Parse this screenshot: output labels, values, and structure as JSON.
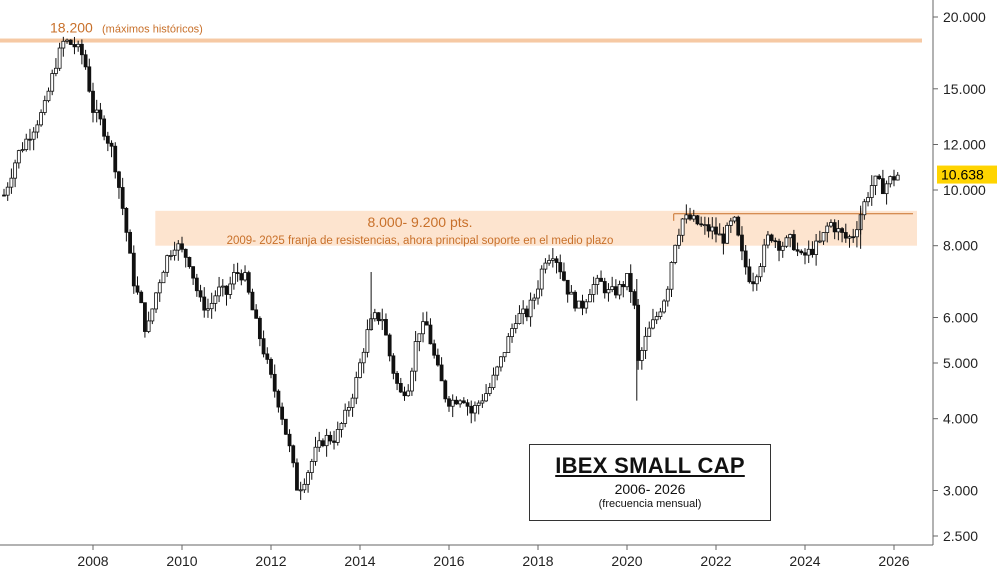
{
  "chart_data": {
    "type": "candlestick",
    "title": "IBEX SMALL CAP",
    "subtitle": "2006- 2026",
    "note": "(frecuencia mensual)",
    "y_scale": "log",
    "ylim": [
      2400,
      21000
    ],
    "xlim": [
      2006.0,
      2026.5
    ],
    "y_ticks": [
      {
        "value": 20000,
        "label": "20.000"
      },
      {
        "value": 15000,
        "label": "15.000"
      },
      {
        "value": 12000,
        "label": "12.000"
      },
      {
        "value": 10000,
        "label": "10.000"
      },
      {
        "value": 8000,
        "label": "8.000"
      },
      {
        "value": 6000,
        "label": "6.000"
      },
      {
        "value": 5000,
        "label": "5.000"
      },
      {
        "value": 4000,
        "label": "4.000"
      },
      {
        "value": 3000,
        "label": "3.000"
      },
      {
        "value": 2500,
        "label": "2.500"
      }
    ],
    "x_ticks": [
      {
        "value": 2008,
        "label": "2008"
      },
      {
        "value": 2010,
        "label": "2010"
      },
      {
        "value": 2012,
        "label": "2012"
      },
      {
        "value": 2014,
        "label": "2014"
      },
      {
        "value": 2016,
        "label": "2016"
      },
      {
        "value": 2018,
        "label": "2018"
      },
      {
        "value": 2020,
        "label": "2020"
      },
      {
        "value": 2022,
        "label": "2022"
      },
      {
        "value": 2024,
        "label": "2024"
      },
      {
        "value": 2026,
        "label": "2026"
      }
    ],
    "last_price": {
      "value": 10638,
      "label": "10.638",
      "color": "#ffd400"
    },
    "annotations": [
      {
        "kind": "hline",
        "value": 18200,
        "label": "18.200",
        "sublabel": "(máximos históricos)",
        "color": "#f6c9a4",
        "text_color": "#c8702a"
      },
      {
        "kind": "band",
        "from": 8000,
        "to": 9200,
        "x_from": 2009.4,
        "label": "8.000- 9.200 pts.",
        "sublabel": "2009- 2025 franja de resistencias, ahora principal soporte en el medio plazo",
        "color": "#fde3cc",
        "text_color": "#c8702a",
        "line_color": "#c8702a"
      }
    ],
    "series": [
      {
        "values": [
          [
            2006.0,
            9800
          ],
          [
            2006.3,
            11500
          ],
          [
            2006.6,
            12600
          ],
          [
            2006.9,
            13800
          ],
          [
            2007.15,
            16500
          ],
          [
            2007.35,
            18200
          ],
          [
            2007.6,
            17800
          ],
          [
            2007.8,
            17000
          ],
          [
            2008.0,
            13800
          ],
          [
            2008.2,
            13000
          ],
          [
            2008.45,
            11600
          ],
          [
            2008.7,
            9000
          ],
          [
            2008.9,
            7000
          ],
          [
            2009.1,
            6200
          ],
          [
            2009.2,
            5600
          ],
          [
            2009.45,
            6800
          ],
          [
            2009.65,
            7600
          ],
          [
            2009.85,
            8100
          ],
          [
            2010.0,
            7800
          ],
          [
            2010.15,
            7600
          ],
          [
            2010.4,
            6400
          ],
          [
            2010.6,
            6200
          ],
          [
            2010.8,
            6700
          ],
          [
            2011.0,
            6600
          ],
          [
            2011.2,
            7200
          ],
          [
            2011.4,
            7100
          ],
          [
            2011.6,
            6100
          ],
          [
            2011.85,
            5200
          ],
          [
            2012.0,
            4700
          ],
          [
            2012.2,
            4200
          ],
          [
            2012.4,
            3600
          ],
          [
            2012.6,
            3000
          ],
          [
            2012.8,
            3200
          ],
          [
            2013.0,
            3500
          ],
          [
            2013.2,
            3700
          ],
          [
            2013.45,
            3700
          ],
          [
            2013.7,
            4100
          ],
          [
            2013.9,
            4600
          ],
          [
            2014.15,
            5600
          ],
          [
            2014.3,
            6000
          ],
          [
            2014.5,
            6000
          ],
          [
            2014.7,
            5000
          ],
          [
            2014.9,
            4400
          ],
          [
            2015.1,
            4600
          ],
          [
            2015.3,
            5700
          ],
          [
            2015.5,
            5800
          ],
          [
            2015.7,
            5000
          ],
          [
            2015.95,
            4300
          ],
          [
            2016.1,
            4300
          ],
          [
            2016.3,
            4400
          ],
          [
            2016.5,
            4100
          ],
          [
            2016.7,
            4300
          ],
          [
            2016.9,
            4500
          ],
          [
            2017.1,
            4900
          ],
          [
            2017.3,
            5400
          ],
          [
            2017.5,
            6000
          ],
          [
            2017.75,
            6100
          ],
          [
            2017.95,
            6600
          ],
          [
            2018.15,
            7600
          ],
          [
            2018.35,
            7800
          ],
          [
            2018.5,
            7300
          ],
          [
            2018.7,
            6600
          ],
          [
            2018.95,
            6200
          ],
          [
            2019.2,
            6800
          ],
          [
            2019.4,
            6900
          ],
          [
            2019.6,
            6600
          ],
          [
            2019.8,
            6700
          ],
          [
            2020.0,
            7000
          ],
          [
            2020.15,
            6500
          ],
          [
            2020.25,
            5000
          ],
          [
            2020.45,
            5600
          ],
          [
            2020.7,
            6100
          ],
          [
            2020.9,
            6700
          ],
          [
            2021.05,
            8000
          ],
          [
            2021.25,
            8900
          ],
          [
            2021.45,
            8900
          ],
          [
            2021.7,
            8600
          ],
          [
            2021.95,
            8500
          ],
          [
            2022.15,
            8200
          ],
          [
            2022.4,
            8900
          ],
          [
            2022.6,
            7600
          ],
          [
            2022.8,
            6900
          ],
          [
            2023.0,
            7500
          ],
          [
            2023.2,
            8400
          ],
          [
            2023.45,
            8000
          ],
          [
            2023.7,
            8200
          ],
          [
            2023.9,
            7600
          ],
          [
            2024.1,
            7800
          ],
          [
            2024.35,
            8100
          ],
          [
            2024.55,
            8800
          ],
          [
            2024.8,
            8400
          ],
          [
            2024.95,
            8200
          ],
          [
            2025.1,
            8400
          ],
          [
            2025.25,
            9100
          ],
          [
            2025.4,
            9800
          ],
          [
            2025.55,
            10400
          ],
          [
            2025.75,
            10100
          ],
          [
            2025.9,
            10400
          ],
          [
            2026.1,
            10638
          ]
        ]
      }
    ]
  }
}
